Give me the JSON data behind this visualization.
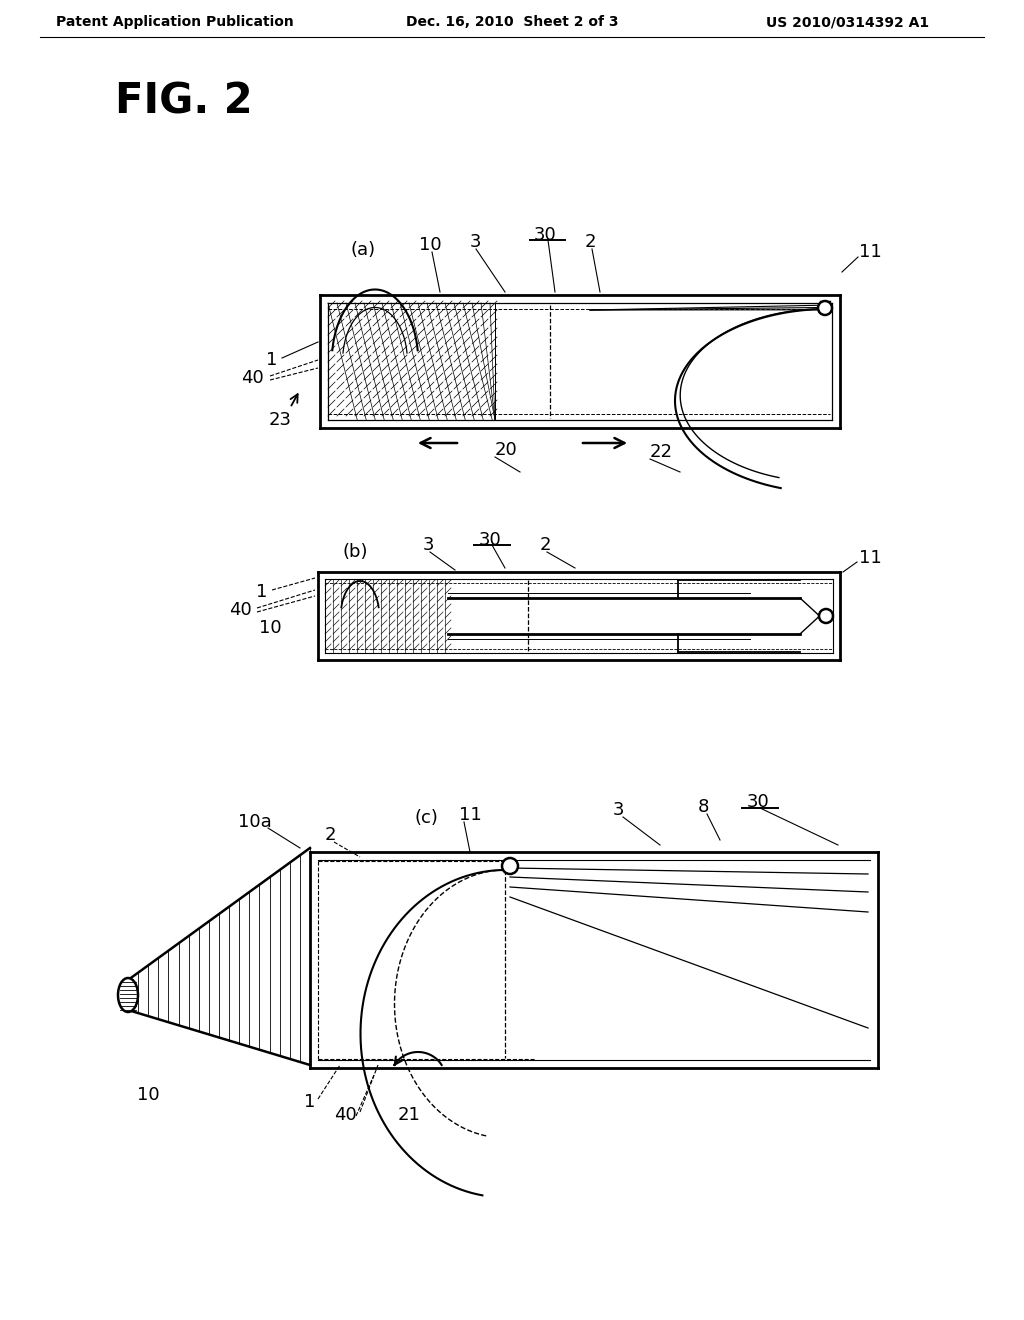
{
  "header_left": "Patent Application Publication",
  "header_center": "Dec. 16, 2010  Sheet 2 of 3",
  "header_right": "US 2010/0314392 A1",
  "fig_title": "FIG. 2",
  "bg": "#ffffff"
}
